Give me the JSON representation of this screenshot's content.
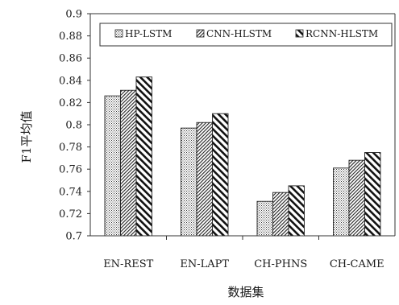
{
  "chart_data": {
    "type": "bar",
    "categories": [
      "EN-REST",
      "EN-LAPT",
      "CH-PHNS",
      "CH-CAME"
    ],
    "series": [
      {
        "name": "HP-LSTM",
        "values": [
          0.826,
          0.797,
          0.731,
          0.761
        ]
      },
      {
        "name": "CNN-HLSTM",
        "values": [
          0.831,
          0.802,
          0.739,
          0.768
        ]
      },
      {
        "name": "RCNN-HLSTM",
        "values": [
          0.843,
          0.81,
          0.745,
          0.775
        ]
      }
    ],
    "xlabel": "数据集",
    "ylabel": "F1平均值",
    "ylim": [
      0.7,
      0.9
    ],
    "yticks": [
      "0.7",
      "0.72",
      "0.74",
      "0.76",
      "0.78",
      "0.8",
      "0.82",
      "0.84",
      "0.86",
      "0.88",
      "0.9"
    ],
    "grid": false,
    "legend_position": "top-right",
    "colors": {
      "axis": "#333333",
      "text": "#1a1a1a",
      "bar_stroke": "#222222"
    }
  }
}
